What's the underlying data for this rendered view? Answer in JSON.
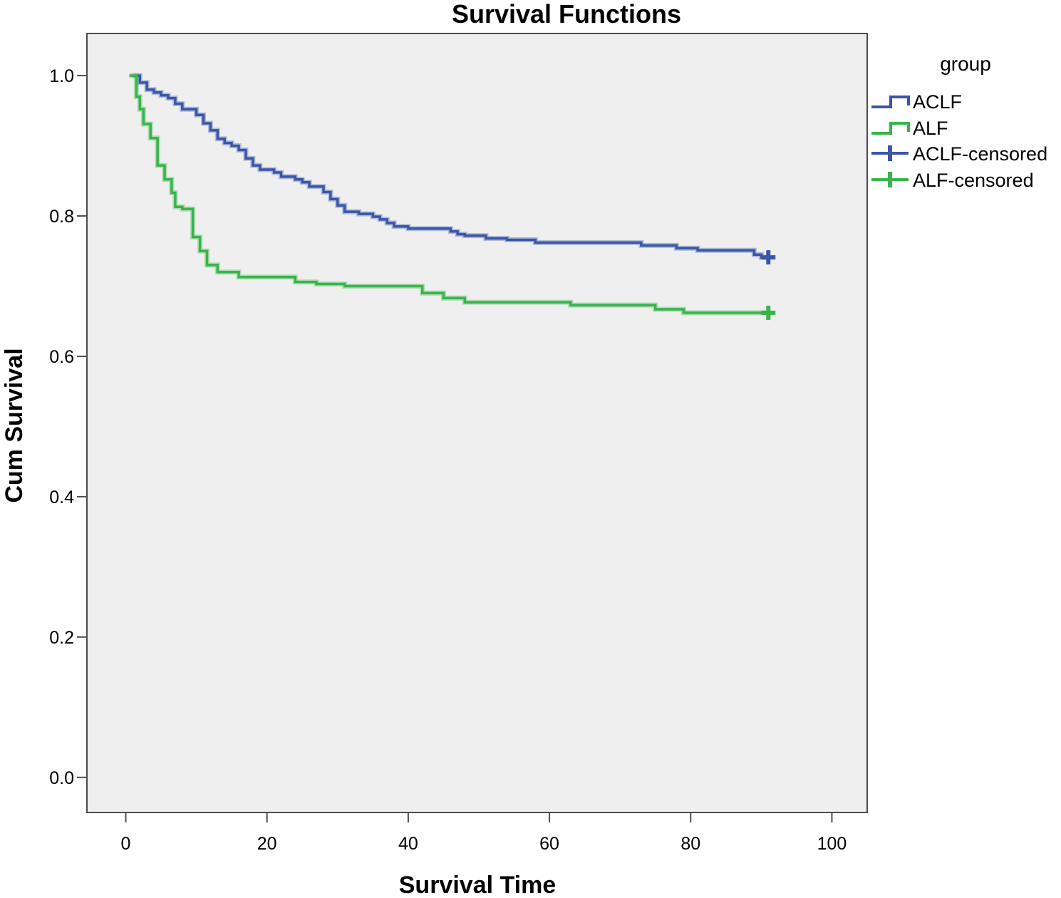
{
  "chart_data": {
    "type": "line",
    "subtype": "kaplan-meier-step",
    "title": "Survival Functions",
    "xlabel": "Survival Time",
    "ylabel": "Cum Survival",
    "xlim": [
      -5.5,
      105
    ],
    "ylim": [
      -0.05,
      1.06
    ],
    "x_ticks": [
      0,
      20,
      40,
      60,
      80,
      100
    ],
    "x_tick_labels": [
      "0",
      "20",
      "40",
      "60",
      "80",
      "100"
    ],
    "y_ticks": [
      0.0,
      0.2,
      0.4,
      0.6,
      0.8,
      1.0
    ],
    "y_tick_labels": [
      "0.0",
      "0.2",
      "0.4",
      "0.6",
      "0.8",
      "1.0"
    ],
    "grid": false,
    "plot_background": "#efefef",
    "legend": {
      "title": "group",
      "placement": "right",
      "entries": [
        {
          "label": "ACLF",
          "kind": "line",
          "color": "#3a56a8"
        },
        {
          "label": "ALF",
          "kind": "line",
          "color": "#38b54a"
        },
        {
          "label": "ACLF-censored",
          "kind": "censor",
          "color": "#3a56a8"
        },
        {
          "label": "ALF-censored",
          "kind": "censor",
          "color": "#38b54a"
        }
      ]
    },
    "series": [
      {
        "name": "ACLF",
        "color": "#3a56a8",
        "steps": [
          [
            1,
            1.0
          ],
          [
            2,
            0.99
          ],
          [
            3,
            0.98
          ],
          [
            4,
            0.976
          ],
          [
            5,
            0.972
          ],
          [
            6,
            0.968
          ],
          [
            7,
            0.96
          ],
          [
            8,
            0.952
          ],
          [
            10,
            0.944
          ],
          [
            11,
            0.932
          ],
          [
            12,
            0.922
          ],
          [
            13,
            0.91
          ],
          [
            14,
            0.904
          ],
          [
            15,
            0.9
          ],
          [
            16,
            0.894
          ],
          [
            17,
            0.882
          ],
          [
            18,
            0.872
          ],
          [
            19,
            0.866
          ],
          [
            21,
            0.862
          ],
          [
            22,
            0.856
          ],
          [
            24,
            0.852
          ],
          [
            25,
            0.848
          ],
          [
            26,
            0.842
          ],
          [
            28,
            0.834
          ],
          [
            29,
            0.824
          ],
          [
            30,
            0.815
          ],
          [
            31,
            0.806
          ],
          [
            33,
            0.803
          ],
          [
            35,
            0.799
          ],
          [
            36,
            0.795
          ],
          [
            37,
            0.79
          ],
          [
            38,
            0.785
          ],
          [
            40,
            0.782
          ],
          [
            46,
            0.778
          ],
          [
            47,
            0.774
          ],
          [
            48,
            0.772
          ],
          [
            51,
            0.768
          ],
          [
            54,
            0.766
          ],
          [
            58,
            0.762
          ],
          [
            73,
            0.758
          ],
          [
            78,
            0.754
          ],
          [
            81,
            0.751
          ],
          [
            89,
            0.745
          ],
          [
            90,
            0.741
          ]
        ],
        "end_x": 91,
        "censored": [
          [
            91,
            0.741
          ]
        ]
      },
      {
        "name": "ALF",
        "color": "#38b54a",
        "steps": [
          [
            0.5,
            1.0
          ],
          [
            1.5,
            0.97
          ],
          [
            2,
            0.952
          ],
          [
            2.5,
            0.931
          ],
          [
            3.5,
            0.911
          ],
          [
            4.5,
            0.872
          ],
          [
            5.5,
            0.852
          ],
          [
            6.5,
            0.833
          ],
          [
            7,
            0.813
          ],
          [
            8,
            0.81
          ],
          [
            9.5,
            0.77
          ],
          [
            10.5,
            0.75
          ],
          [
            11.5,
            0.73
          ],
          [
            13,
            0.72
          ],
          [
            16,
            0.713
          ],
          [
            24,
            0.706
          ],
          [
            27,
            0.703
          ],
          [
            31,
            0.7
          ],
          [
            42,
            0.69
          ],
          [
            45,
            0.683
          ],
          [
            48,
            0.677
          ],
          [
            63,
            0.673
          ],
          [
            75,
            0.667
          ],
          [
            79,
            0.662
          ]
        ],
        "end_x": 91,
        "censored": [
          [
            91,
            0.662
          ]
        ]
      }
    ]
  }
}
